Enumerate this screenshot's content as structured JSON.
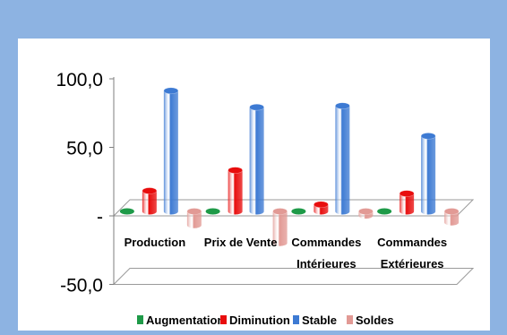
{
  "chart_data": {
    "type": "bar",
    "style": "3d-cylinder",
    "title": "",
    "xlabel": "",
    "ylabel": "",
    "categories": [
      [
        "Production"
      ],
      [
        "Prix de Vente"
      ],
      [
        "Commandes",
        "Intérieures"
      ],
      [
        "Commandes",
        "Extérieures"
      ]
    ],
    "series": [
      {
        "name": "Augmentation",
        "color": "#1e9a48",
        "values": [
          0,
          0,
          0,
          0
        ]
      },
      {
        "name": "Diminution",
        "color": "#e80d0d",
        "values": [
          15,
          30,
          5,
          13
        ]
      },
      {
        "name": "Stable",
        "color": "#3d7ad3",
        "values": [
          88,
          76,
          77,
          55
        ]
      },
      {
        "name": "Soldes",
        "color": "#e29a95",
        "values": [
          -10,
          -23,
          -3,
          -8
        ]
      }
    ],
    "ylim": [
      -50,
      100
    ],
    "yticks": [
      {
        "value": 100,
        "label": "100,0"
      },
      {
        "value": 50,
        "label": "50,0"
      },
      {
        "value": 0,
        "label": "-"
      },
      {
        "value": -50,
        "label": "-50,0"
      }
    ],
    "legend_position": "bottom",
    "grid": false
  },
  "colors": {
    "background": "#8db3e2",
    "plot_area": "#ffffff"
  }
}
